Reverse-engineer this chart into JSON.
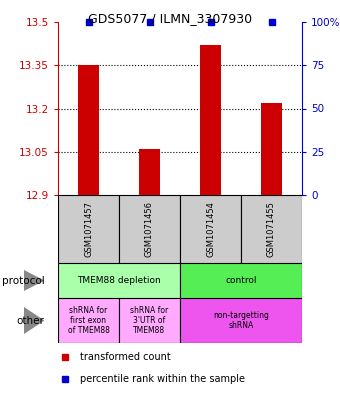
{
  "title": "GDS5077 / ILMN_3307930",
  "samples": [
    "GSM1071457",
    "GSM1071456",
    "GSM1071454",
    "GSM1071455"
  ],
  "red_values": [
    13.35,
    13.06,
    13.42,
    13.22
  ],
  "blue_values": [
    100,
    100,
    100,
    100
  ],
  "ylim": [
    12.9,
    13.5
  ],
  "yticks_left": [
    12.9,
    13.05,
    13.2,
    13.35,
    13.5
  ],
  "yticks_right": [
    0,
    25,
    50,
    75,
    100
  ],
  "ytick_labels_right": [
    "0",
    "25",
    "50",
    "75",
    "100%"
  ],
  "bar_bottom": 12.9,
  "protocol_row": [
    {
      "label": "TMEM88 depletion",
      "color": "#aaffaa",
      "span": [
        0,
        2
      ]
    },
    {
      "label": "control",
      "color": "#55ee55",
      "span": [
        2,
        4
      ]
    }
  ],
  "other_row": [
    {
      "label": "shRNA for\nfirst exon\nof TMEM88",
      "color": "#ffaaff",
      "span": [
        0,
        1
      ]
    },
    {
      "label": "shRNA for\n3'UTR of\nTMEM88",
      "color": "#ffaaff",
      "span": [
        1,
        2
      ]
    },
    {
      "label": "non-targetting\nshRNA",
      "color": "#ee55ee",
      "span": [
        2,
        4
      ]
    }
  ],
  "legend_red_label": "transformed count",
  "legend_blue_label": "percentile rank within the sample",
  "red_color": "#cc0000",
  "blue_color": "#0000cc",
  "bg_color": "#ffffff",
  "sample_box_color": "#cccccc",
  "arrow_color": "#888888"
}
